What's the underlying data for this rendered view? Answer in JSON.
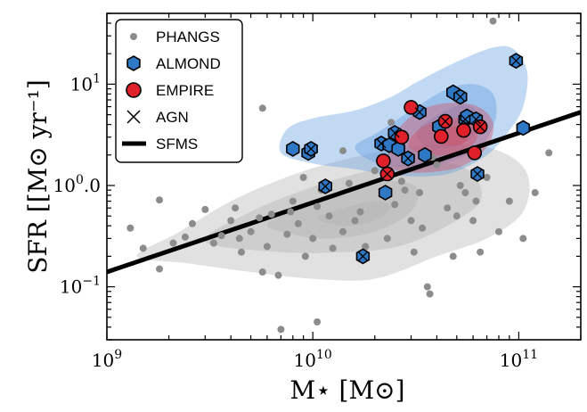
{
  "chart_data": {
    "type": "scatter",
    "title": "",
    "xlabel": "M⋆ [M⊙]",
    "ylabel": "SFR [[M⊙ yr⁻¹]",
    "xscale": "log",
    "yscale": "log",
    "xlim": [
      1000000000.0,
      200000000000.0
    ],
    "ylim": [
      0.03,
      50
    ],
    "x_ticks": [
      {
        "value": 1000000000.0,
        "base": "10",
        "exp": "9"
      },
      {
        "value": 10000000000.0,
        "base": "10",
        "exp": "10"
      },
      {
        "value": 100000000000.0,
        "base": "10",
        "exp": "11"
      }
    ],
    "y_ticks": [
      {
        "value": 0.1,
        "base": "10",
        "exp": "−1"
      },
      {
        "value": 1,
        "base": "10",
        "exp": "0"
      },
      {
        "value": 10,
        "base": "10",
        "exp": "1"
      }
    ],
    "y_tick_suffix": ".0",
    "legend_position": "top-left",
    "grid": false,
    "colors": {
      "phangs": "#8c8c8c",
      "almond": "#2f78c5",
      "empire": "#e0202a",
      "sfms": "#000000",
      "almond_contour": "#5b9be0",
      "empire_contour": "#d94a5a",
      "phangs_contour": "#b0b0b0"
    },
    "series": [
      {
        "name": "PHANGS",
        "marker": "circle",
        "points": [
          [
            1300000000.0,
            0.38
          ],
          [
            1800000000.0,
            0.72
          ],
          [
            1800000000.0,
            0.15
          ],
          [
            2600000000.0,
            0.42
          ],
          [
            3000000000.0,
            0.58
          ],
          [
            3300000000.0,
            0.27
          ],
          [
            3600000000.0,
            0.32
          ],
          [
            4000000000.0,
            0.45
          ],
          [
            4200000000.0,
            0.6
          ],
          [
            4500000000.0,
            0.22
          ],
          [
            5000000000.0,
            0.35
          ],
          [
            5500000000.0,
            0.48
          ],
          [
            5700000000.0,
            0.14
          ],
          [
            6000000000.0,
            0.25
          ],
          [
            6300000000.0,
            0.52
          ],
          [
            6800000000.0,
            0.13
          ],
          [
            7000000000.0,
            0.038
          ],
          [
            7500000000.0,
            0.33
          ],
          [
            8000000000.0,
            0.7
          ],
          [
            9000000000.0,
            1.2
          ],
          [
            9200000000.0,
            0.2
          ],
          [
            10000000000.0,
            0.3
          ],
          [
            10500000000.0,
            0.045
          ],
          [
            11000000000.0,
            0.9
          ],
          [
            12000000000.0,
            0.5
          ],
          [
            14000000000.0,
            0.35
          ],
          [
            15000000000.0,
            1.05
          ],
          [
            16000000000.0,
            0.45
          ],
          [
            18000000000.0,
            0.25
          ],
          [
            20000000000.0,
            1.4
          ],
          [
            23000000000.0,
            0.3
          ],
          [
            25000000000.0,
            0.65
          ],
          [
            28000000000.0,
            0.9
          ],
          [
            30000000000.0,
            0.45
          ],
          [
            31000000000.0,
            0.22
          ],
          [
            33000000000.0,
            0.85
          ],
          [
            36000000000.0,
            0.1
          ],
          [
            37000000000.0,
            0.085
          ],
          [
            40000000000.0,
            1.6
          ],
          [
            45000000000.0,
            0.6
          ],
          [
            50000000000.0,
            0.5
          ],
          [
            55000000000.0,
            0.85
          ],
          [
            60000000000.0,
            0.45
          ],
          [
            65000000000.0,
            0.22
          ],
          [
            70000000000.0,
            1.2
          ],
          [
            80000000000.0,
            0.35
          ],
          [
            90000000000.0,
            0.7
          ],
          [
            105000000000.0,
            0.3
          ],
          [
            120000000000.0,
            0.85
          ],
          [
            140000000000.0,
            2.1
          ],
          [
            75000000000.0,
            42
          ],
          [
            5700000000.0,
            5.8
          ],
          [
            14000000000.0,
            2.2
          ],
          [
            24000000000.0,
            4.2
          ],
          [
            38000000000.0,
            1.9
          ],
          [
            22000000000.0,
            0.8
          ],
          [
            48000000000.0,
            0.2
          ],
          [
            17000000000.0,
            0.55
          ],
          [
            27000000000.0,
            1.1
          ],
          [
            8500000000.0,
            0.42
          ],
          [
            12500000000.0,
            0.24
          ],
          [
            34000000000.0,
            0.38
          ],
          [
            52000000000.0,
            1.0
          ],
          [
            62000000000.0,
            0.7
          ],
          [
            2100000000.0,
            0.27
          ],
          [
            2400000000.0,
            0.31
          ],
          [
            1500000000.0,
            0.24
          ],
          [
            4400000000.0,
            0.3
          ],
          [
            7800000000.0,
            0.55
          ],
          [
            10500000000.0,
            0.62
          ]
        ]
      },
      {
        "name": "ALMOND",
        "marker": "hexagon",
        "points": [
          [
            8000000000.0,
            2.3
          ],
          [
            9500000000.0,
            2.1
          ],
          [
            9800000000.0,
            2.3
          ],
          [
            11500000000.0,
            0.98
          ],
          [
            17500000000.0,
            0.2
          ],
          [
            21500000000.0,
            2.6
          ],
          [
            22500000000.0,
            0.85
          ],
          [
            23500000000.0,
            2.5
          ],
          [
            25000000000.0,
            3.3
          ],
          [
            26000000000.0,
            2.3
          ],
          [
            29000000000.0,
            1.85
          ],
          [
            33000000000.0,
            5.3
          ],
          [
            35000000000.0,
            2.0
          ],
          [
            41000000000.0,
            3.8
          ],
          [
            48000000000.0,
            8.3
          ],
          [
            52000000000.0,
            7.5
          ],
          [
            55000000000.0,
            4.5
          ],
          [
            56000000000.0,
            4.8
          ],
          [
            62000000000.0,
            4.5
          ],
          [
            63000000000.0,
            1.3
          ],
          [
            97000000000.0,
            17
          ],
          [
            105000000000.0,
            3.7
          ]
        ]
      },
      {
        "name": "EMPIRE",
        "marker": "circle",
        "points": [
          [
            22000000000.0,
            1.75
          ],
          [
            23000000000.0,
            1.3
          ],
          [
            27000000000.0,
            3.0
          ],
          [
            30000000000.0,
            5.9
          ],
          [
            42000000000.0,
            3.05
          ],
          [
            44000000000.0,
            4.3
          ],
          [
            54000000000.0,
            3.5
          ],
          [
            61000000000.0,
            2.1
          ],
          [
            65000000000.0,
            3.8
          ]
        ]
      },
      {
        "name": "AGN",
        "marker": "x",
        "points": [
          [
            9800000000.0,
            2.3
          ],
          [
            11500000000.0,
            0.98
          ],
          [
            17500000000.0,
            0.2
          ],
          [
            21500000000.0,
            2.6
          ],
          [
            23000000000.0,
            1.3
          ],
          [
            25000000000.0,
            3.3
          ],
          [
            29000000000.0,
            1.85
          ],
          [
            33000000000.0,
            5.3
          ],
          [
            44000000000.0,
            4.3
          ],
          [
            52000000000.0,
            7.5
          ],
          [
            55000000000.0,
            4.5
          ],
          [
            62000000000.0,
            4.5
          ],
          [
            63000000000.0,
            1.3
          ],
          [
            65000000000.0,
            3.8
          ],
          [
            97000000000.0,
            17
          ]
        ]
      },
      {
        "name": "SFMS",
        "marker": "line",
        "points": [
          [
            1000000000.0,
            0.14
          ],
          [
            200000000000.0,
            5.3
          ]
        ]
      }
    ],
    "contours": {
      "phangs": [
        {
          "level": 0.15,
          "polygon": [
            [
              1400000000.0,
              0.2
            ],
            [
              2200000000.0,
              0.34
            ],
            [
              4000000000.0,
              0.7
            ],
            [
              7000000000.0,
              1.15
            ],
            [
              12000000000.0,
              1.65
            ],
            [
              25000000000.0,
              2.3
            ],
            [
              45000000000.0,
              2.6
            ],
            [
              80000000000.0,
              2.2
            ],
            [
              110000000000.0,
              1.3
            ],
            [
              105000000000.0,
              0.55
            ],
            [
              70000000000.0,
              0.3
            ],
            [
              40000000000.0,
              0.2
            ],
            [
              20000000000.0,
              0.12
            ],
            [
              10000000000.0,
              0.12
            ],
            [
              5000000000.0,
              0.14
            ],
            [
              2500000000.0,
              0.17
            ]
          ]
        },
        {
          "level": 0.35,
          "polygon": [
            [
              3000000000.0,
              0.28
            ],
            [
              5000000000.0,
              0.55
            ],
            [
              9000000000.0,
              0.9
            ],
            [
              15000000000.0,
              1.25
            ],
            [
              26000000000.0,
              1.6
            ],
            [
              43000000000.0,
              1.7
            ],
            [
              60000000000.0,
              1.3
            ],
            [
              65000000000.0,
              0.7
            ],
            [
              45000000000.0,
              0.4
            ],
            [
              26000000000.0,
              0.25
            ],
            [
              14000000000.0,
              0.22
            ],
            [
              7000000000.0,
              0.22
            ]
          ]
        },
        {
          "level": 0.6,
          "polygon": [
            [
              6000000000.0,
              0.42
            ],
            [
              10000000000.0,
              0.7
            ],
            [
              16000000000.0,
              0.95
            ],
            [
              24000000000.0,
              1.1
            ],
            [
              32000000000.0,
              0.95
            ],
            [
              30000000000.0,
              0.55
            ],
            [
              20000000000.0,
              0.35
            ],
            [
              12000000000.0,
              0.3
            ],
            [
              8000000000.0,
              0.33
            ]
          ]
        },
        {
          "level": 0.85,
          "polygon": [
            [
              10500000000.0,
              0.48
            ],
            [
              15000000000.0,
              0.62
            ],
            [
              20000000000.0,
              0.7
            ],
            [
              24000000000.0,
              0.62
            ],
            [
              20000000000.0,
              0.45
            ],
            [
              14000000000.0,
              0.4
            ]
          ]
        }
      ],
      "almond": [
        {
          "level": 0.15,
          "polygon": [
            [
              7000000000.0,
              2.1
            ],
            [
              7500000000.0,
              3.6
            ],
            [
              10000000000.0,
              4.6
            ],
            [
              16000000000.0,
              5.5
            ],
            [
              24000000000.0,
              7.5
            ],
            [
              32000000000.0,
              10.5
            ],
            [
              48000000000.0,
              16
            ],
            [
              75000000000.0,
              23
            ],
            [
              95000000000.0,
              22
            ],
            [
              110000000000.0,
              13
            ],
            [
              105000000000.0,
              6
            ],
            [
              90000000000.0,
              3.5
            ],
            [
              70000000000.0,
              2.0
            ],
            [
              45000000000.0,
              1.3
            ],
            [
              26000000000.0,
              1.25
            ],
            [
              16000000000.0,
              1.45
            ],
            [
              10000000000.0,
              1.65
            ]
          ]
        },
        {
          "level": 0.35,
          "polygon": [
            [
              16000000000.0,
              2.4
            ],
            [
              21000000000.0,
              3.4
            ],
            [
              30000000000.0,
              5.5
            ],
            [
              44000000000.0,
              8.8
            ],
            [
              60000000000.0,
              10
            ],
            [
              75000000000.0,
              8
            ],
            [
              77000000000.0,
              4.5
            ],
            [
              65000000000.0,
              2.4
            ],
            [
              45000000000.0,
              1.7
            ],
            [
              30000000000.0,
              1.5
            ],
            [
              20000000000.0,
              1.7
            ]
          ]
        },
        {
          "level": 0.6,
          "polygon": [
            [
              32000000000.0,
              3.4
            ],
            [
              42000000000.0,
              5.2
            ],
            [
              54000000000.0,
              6.3
            ],
            [
              63000000000.0,
              5.2
            ],
            [
              61000000000.0,
              3.2
            ],
            [
              48000000000.0,
              2.4
            ],
            [
              36000000000.0,
              2.4
            ]
          ]
        }
      ],
      "empire": [
        {
          "level": 0.15,
          "polygon": [
            [
              23000000000.0,
              1.7
            ],
            [
              25000000000.0,
              3.2
            ],
            [
              32000000000.0,
              5.3
            ],
            [
              44000000000.0,
              6.5
            ],
            [
              62000000000.0,
              6.1
            ],
            [
              75000000000.0,
              4.2
            ],
            [
              70000000000.0,
              2.4
            ],
            [
              53000000000.0,
              1.55
            ],
            [
              36000000000.0,
              1.35
            ],
            [
              26000000000.0,
              1.4
            ]
          ]
        },
        {
          "level": 0.4,
          "polygon": [
            [
              29000000000.0,
              2.5
            ],
            [
              34000000000.0,
              3.8
            ],
            [
              46000000000.0,
              4.6
            ],
            [
              60000000000.0,
              4.1
            ],
            [
              62000000000.0,
              2.8
            ],
            [
              50000000000.0,
              2.1
            ],
            [
              36000000000.0,
              2.0
            ]
          ]
        },
        {
          "level": 0.7,
          "polygon": [
            [
              39000000000.0,
              3.0
            ],
            [
              48000000000.0,
              3.8
            ],
            [
              57000000000.0,
              3.5
            ],
            [
              54000000000.0,
              2.6
            ],
            [
              44000000000.0,
              2.5
            ]
          ]
        }
      ]
    }
  }
}
